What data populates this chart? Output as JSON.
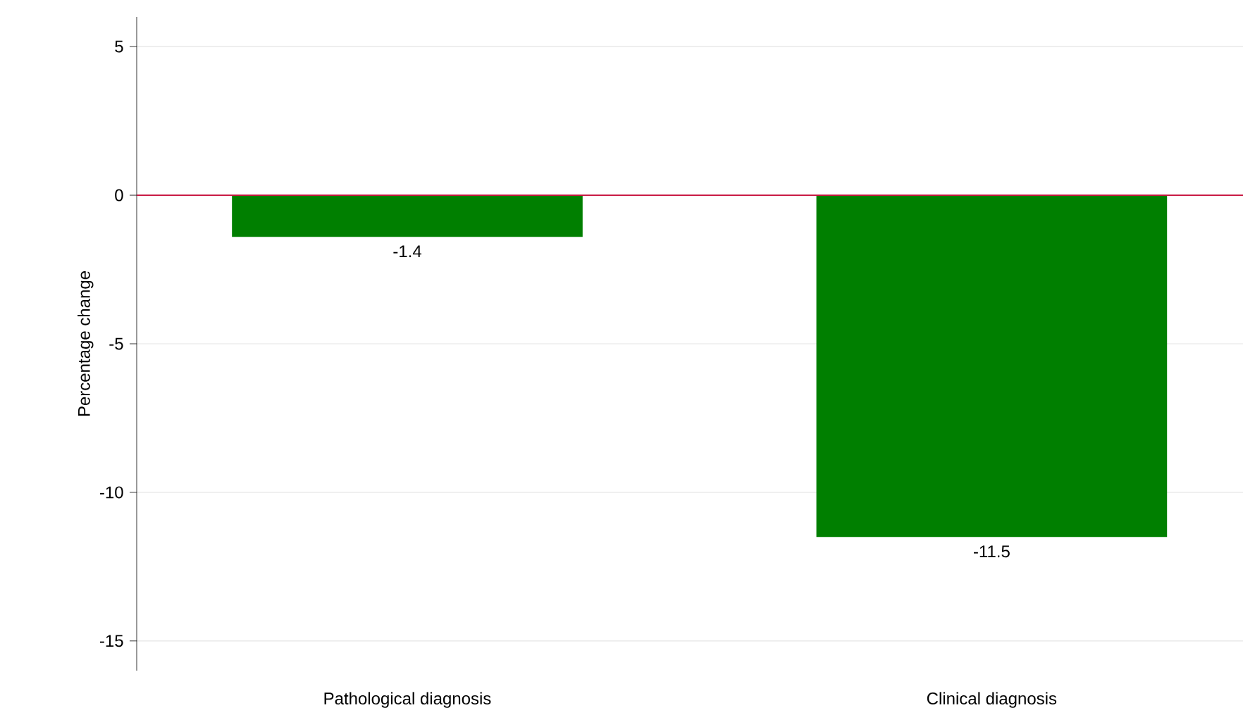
{
  "chart_data": {
    "type": "bar",
    "ylabel": "Percentage change",
    "categories": [
      "Pathological diagnosis",
      "Clinical diagnosis"
    ],
    "values": [
      -1.4,
      -11.5
    ],
    "color": "#007f00",
    "ylim": [
      -16,
      6
    ],
    "yticks": [
      -15,
      -10,
      -5,
      0,
      5
    ],
    "grid": "y",
    "data_labels": true,
    "ref_lines": [
      {
        "axis": "y",
        "value": 0,
        "color": "#c8103c"
      }
    ]
  }
}
